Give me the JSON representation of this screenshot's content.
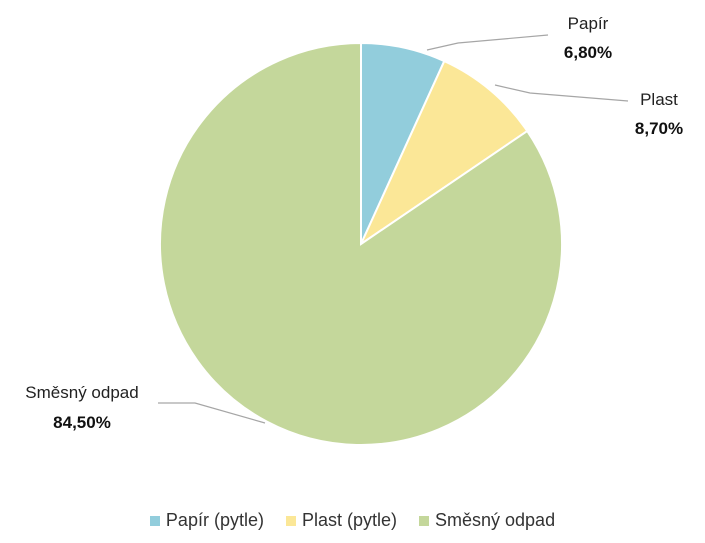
{
  "chart_data": {
    "type": "pie",
    "categories": [
      "Papír (pytle)",
      "Plast (pytle)",
      "Směsný odpad"
    ],
    "values": [
      6.8,
      8.7,
      84.5
    ],
    "data_labels": [
      {
        "name": "Papír",
        "value": "6,80%"
      },
      {
        "name": "Plast",
        "value": "8,70%"
      },
      {
        "name": "Směsný odpad",
        "value": "84,50%"
      }
    ],
    "colors": [
      "#92cddc",
      "#fbe797",
      "#c4d79b"
    ],
    "legend_position": "bottom",
    "start_angle": "12 o'clock, clockwise"
  }
}
